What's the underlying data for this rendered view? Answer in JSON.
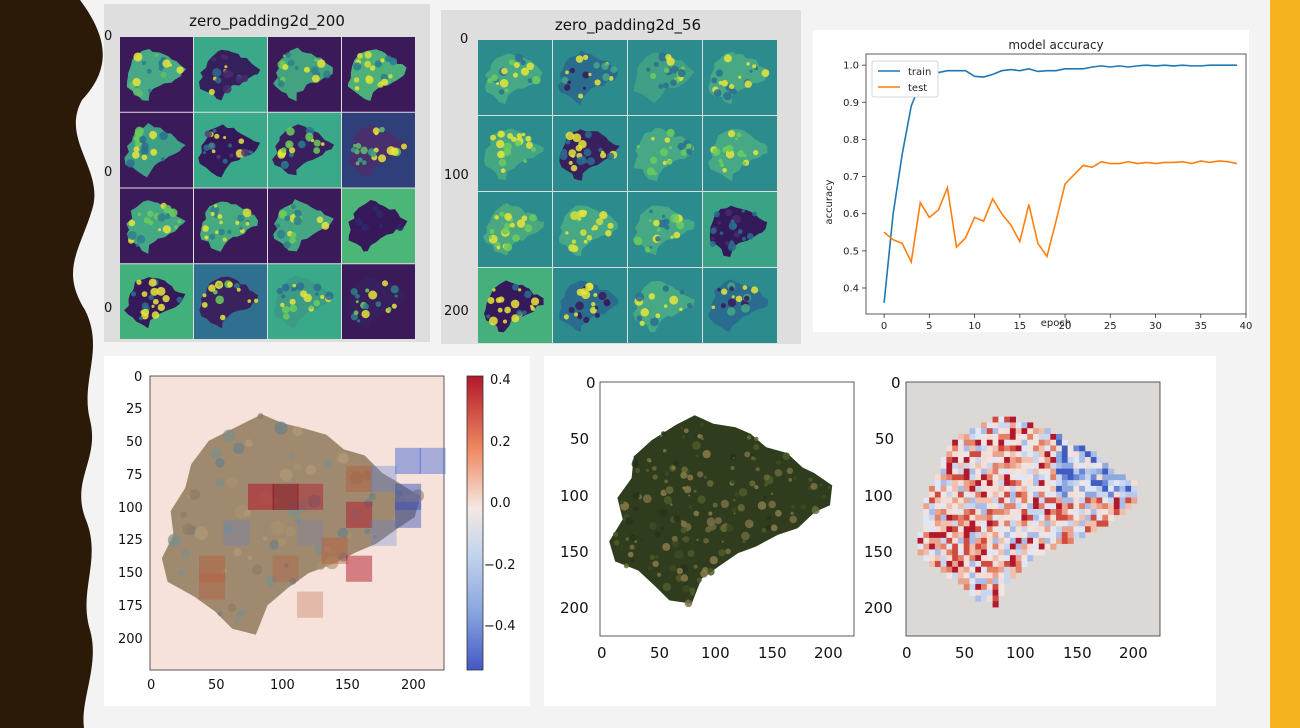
{
  "colors": {
    "left_band": "#2b1a08",
    "right_band": "#f7b21f",
    "background": "#f3f3f3",
    "train_line": "#1f77b4",
    "test_line": "#ff7f0e",
    "feature_dark": "#3b1a5a",
    "feature_mid": "#3aa386",
    "feature_light": "#d9e53a"
  },
  "panels": {
    "zero_padding_200": {
      "title": "zero_padding2d_200",
      "y_ticks": [
        "0",
        "0",
        "0"
      ]
    },
    "zero_padding_56": {
      "title": "zero_padding2d_56",
      "y_ticks": [
        "0",
        "100",
        "200"
      ]
    },
    "heatmap_overlay": {
      "x_ticks": [
        "0",
        "50",
        "100",
        "150",
        "200"
      ],
      "y_ticks": [
        "0",
        "25",
        "50",
        "75",
        "100",
        "125",
        "150",
        "175",
        "200"
      ],
      "colorbar_ticks": [
        "0.4",
        "0.2",
        "0.0",
        "−0.2",
        "−0.4"
      ]
    },
    "satellite_image": {
      "x_ticks": [
        "0",
        "50",
        "100",
        "150",
        "200"
      ],
      "y_ticks": [
        "0",
        "50",
        "100",
        "150",
        "200"
      ]
    },
    "attribution_map": {
      "x_ticks": [
        "0",
        "50",
        "100",
        "150",
        "200"
      ],
      "y_ticks": [
        "0",
        "50",
        "100",
        "150",
        "200"
      ]
    }
  },
  "chart_data": {
    "type": "line",
    "title": "model accuracy",
    "xlabel": "epoch",
    "ylabel": "accuracy",
    "xlim": [
      -2,
      40
    ],
    "ylim": [
      0.33,
      1.03
    ],
    "x_ticks": [
      0,
      5,
      10,
      15,
      20,
      25,
      30,
      35,
      40
    ],
    "y_ticks": [
      0.4,
      0.5,
      0.6,
      0.7,
      0.8,
      0.9,
      1.0
    ],
    "legend_position": "top-left",
    "grid": false,
    "x": [
      0,
      1,
      2,
      3,
      4,
      5,
      6,
      7,
      8,
      9,
      10,
      11,
      12,
      13,
      14,
      15,
      16,
      17,
      18,
      19,
      20,
      21,
      22,
      23,
      24,
      25,
      26,
      27,
      28,
      29,
      30,
      31,
      32,
      33,
      34,
      35,
      36,
      37,
      38,
      39
    ],
    "series": [
      {
        "name": "train",
        "color": "#1f77b4",
        "values": [
          0.36,
          0.6,
          0.76,
          0.89,
          0.95,
          0.97,
          0.98,
          0.985,
          0.985,
          0.985,
          0.97,
          0.968,
          0.975,
          0.985,
          0.988,
          0.985,
          0.99,
          0.983,
          0.985,
          0.985,
          0.99,
          0.99,
          0.99,
          0.995,
          0.998,
          0.995,
          0.998,
          0.995,
          0.998,
          1.0,
          0.998,
          1.0,
          0.998,
          1.0,
          0.998,
          0.998,
          1.0,
          1.0,
          1.0,
          1.0
        ]
      },
      {
        "name": "test",
        "color": "#ff7f0e",
        "values": [
          0.55,
          0.53,
          0.52,
          0.47,
          0.63,
          0.59,
          0.61,
          0.67,
          0.51,
          0.535,
          0.59,
          0.58,
          0.64,
          0.6,
          0.57,
          0.525,
          0.625,
          0.52,
          0.485,
          0.58,
          0.68,
          0.705,
          0.73,
          0.725,
          0.74,
          0.735,
          0.735,
          0.74,
          0.735,
          0.738,
          0.735,
          0.738,
          0.738,
          0.74,
          0.735,
          0.742,
          0.738,
          0.742,
          0.74,
          0.735
        ]
      }
    ]
  }
}
